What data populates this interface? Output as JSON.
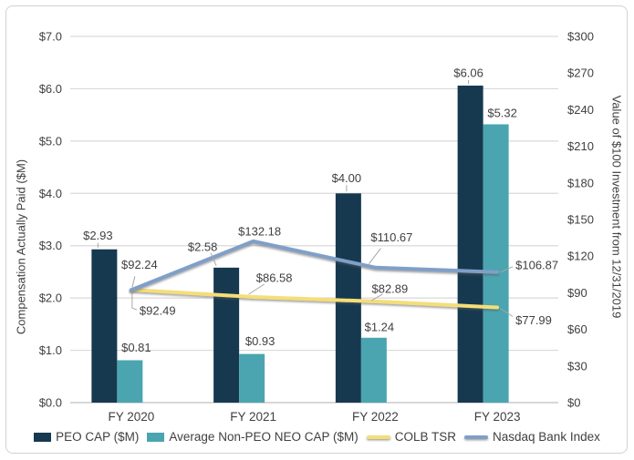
{
  "chart_data": {
    "type": "bar+line",
    "title": "",
    "categories": [
      "FY 2020",
      "FY 2021",
      "FY 2022",
      "FY 2023"
    ],
    "left_axis": {
      "title": "Compensation Actually Paid ($M)",
      "min": 0,
      "max": 7,
      "ticks": [
        "$0.0",
        "$1.0",
        "$2.0",
        "$3.0",
        "$4.0",
        "$5.0",
        "$6.0",
        "$7.0"
      ]
    },
    "right_axis": {
      "title": "Value of $100 Investment from 12/31/2019",
      "min": 0,
      "max": 300,
      "ticks": [
        "$0",
        "$30",
        "$60",
        "$90",
        "$120",
        "$150",
        "$180",
        "$210",
        "$240",
        "$270",
        "$300"
      ]
    },
    "series": [
      {
        "name": "PEO CAP ($M)",
        "type": "bar",
        "axis": "left",
        "color": "#16394f",
        "values": [
          2.93,
          2.58,
          4.0,
          6.06
        ],
        "labels": [
          "$2.93",
          "$2.58",
          "$4.00",
          "$6.06"
        ]
      },
      {
        "name": "Average Non-PEO NEO CAP ($M)",
        "type": "bar",
        "axis": "left",
        "color": "#4aa5b0",
        "values": [
          0.81,
          0.93,
          1.24,
          5.32
        ],
        "labels": [
          "$0.81",
          "$0.93",
          "$1.24",
          "$5.32"
        ]
      },
      {
        "name": "COLB TSR",
        "type": "line",
        "axis": "right",
        "color": "#f4de78",
        "values": [
          92.49,
          86.58,
          82.89,
          77.99
        ],
        "labels": [
          "$92.49",
          "$86.58",
          "$82.89",
          "$77.99"
        ]
      },
      {
        "name": "Nasdaq Bank Index",
        "type": "line",
        "axis": "right",
        "color": "#7f9fc8",
        "values": [
          92.24,
          132.18,
          110.67,
          106.87
        ],
        "labels": [
          "$92.24",
          "$132.18",
          "$110.67",
          "$106.87"
        ]
      }
    ],
    "legend_position": "bottom",
    "grid": true,
    "colors": {
      "grid": "#d9d9d9",
      "baseline": "#bfbfbf",
      "text": "#404040",
      "leader": "#a6a6a6"
    }
  }
}
